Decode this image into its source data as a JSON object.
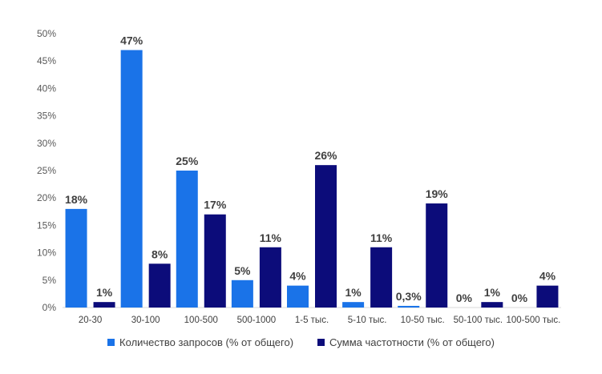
{
  "chart_data": {
    "type": "bar",
    "categories": [
      "20-30",
      "30-100",
      "100-500",
      "500-1000",
      "1-5 тыс.",
      "5-10 тыс.",
      "10-50 тыс.",
      "50-100 тыс.",
      "100-500 тыс."
    ],
    "series": [
      {
        "name": "Количество запросов (% от общего)",
        "color": "#1a73e8",
        "values": [
          18,
          47,
          25,
          5,
          4,
          1,
          0.3,
          0,
          0
        ],
        "labels": [
          "18%",
          "47%",
          "25%",
          "5%",
          "4%",
          "1%",
          "0,3%",
          "0%",
          "0%"
        ]
      },
      {
        "name": "Сумма частотности (% от общего)",
        "color": "#0c0c7a",
        "values": [
          1,
          8,
          17,
          11,
          26,
          11,
          19,
          1,
          4
        ],
        "labels": [
          "1%",
          "8%",
          "17%",
          "11%",
          "26%",
          "11%",
          "19%",
          "1%",
          "4%"
        ]
      }
    ],
    "yticks": [
      "0%",
      "5%",
      "10%",
      "15%",
      "20%",
      "25%",
      "30%",
      "35%",
      "40%",
      "45%",
      "50%"
    ],
    "ylim": [
      0,
      50
    ],
    "title": "",
    "xlabel": "",
    "ylabel": "",
    "legend_position": "bottom"
  }
}
